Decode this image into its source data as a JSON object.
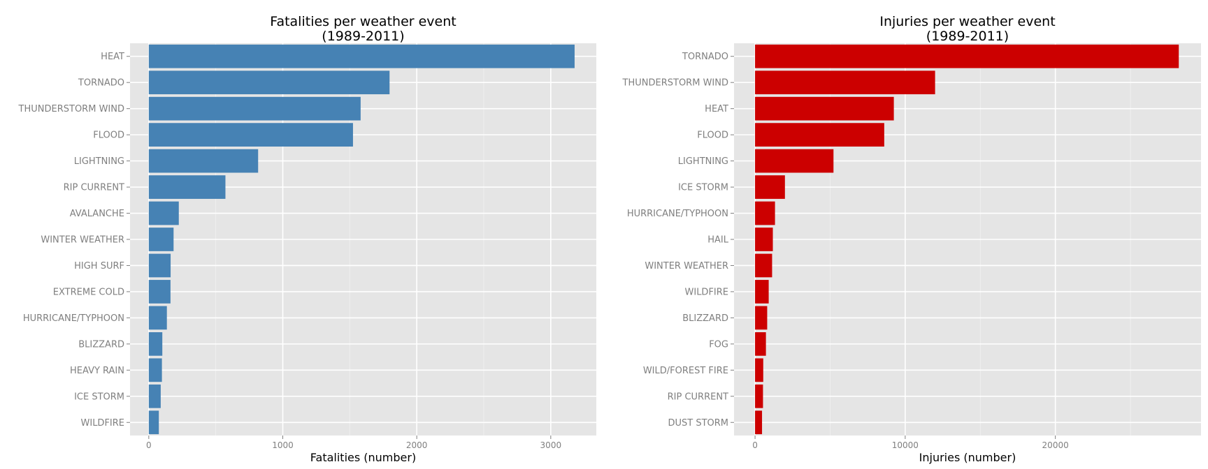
{
  "chart_data": [
    {
      "type": "bar",
      "orientation": "horizontal",
      "title": "Fatalities per weather event",
      "subtitle": "(1989-2011)",
      "xlabel": "Fatalities (number)",
      "ylabel": "",
      "color": "#4682b4",
      "xlim": [
        -140,
        3340
      ],
      "ticks": [
        0,
        1000,
        2000,
        3000
      ],
      "tick_labels": [
        "0",
        "1000",
        "2000",
        "3000"
      ],
      "grid": true,
      "categories": [
        "HEAT",
        "TORNADO",
        "THUNDERSTORM WIND",
        "FLOOD",
        "LIGHTNING",
        "RIP CURRENT",
        "AVALANCHE",
        "WINTER WEATHER",
        "HIGH SURF",
        "EXTREME COLD",
        "HURRICANE/TYPHOON",
        "BLIZZARD",
        "HEAVY RAIN",
        "ICE STORM",
        "WILDFIRE"
      ],
      "values": [
        3178,
        1797,
        1581,
        1524,
        816,
        572,
        224,
        185,
        163,
        162,
        135,
        101,
        98,
        89,
        75
      ]
    },
    {
      "type": "bar",
      "orientation": "horizontal",
      "title": "Injuries per weather event",
      "subtitle": "(1989-2011)",
      "xlabel": "Injuries (number)",
      "ylabel": "",
      "color": "#cc0000",
      "xlim": [
        -1400,
        29700
      ],
      "ticks": [
        0,
        10000,
        20000
      ],
      "tick_labels": [
        "0",
        "10000",
        "20000"
      ],
      "grid": true,
      "categories": [
        "TORNADO",
        "THUNDERSTORM WIND",
        "HEAT",
        "FLOOD",
        "LIGHTNING",
        "ICE STORM",
        "HURRICANE/TYPHOON",
        "HAIL",
        "WINTER WEATHER",
        "WILDFIRE",
        "BLIZZARD",
        "FOG",
        "WILD/FOREST FIRE",
        "RIP CURRENT",
        "DUST STORM"
      ],
      "values": [
        28220,
        11990,
        9243,
        8603,
        5224,
        1990,
        1328,
        1185,
        1135,
        909,
        808,
        724,
        545,
        529,
        465
      ]
    }
  ]
}
